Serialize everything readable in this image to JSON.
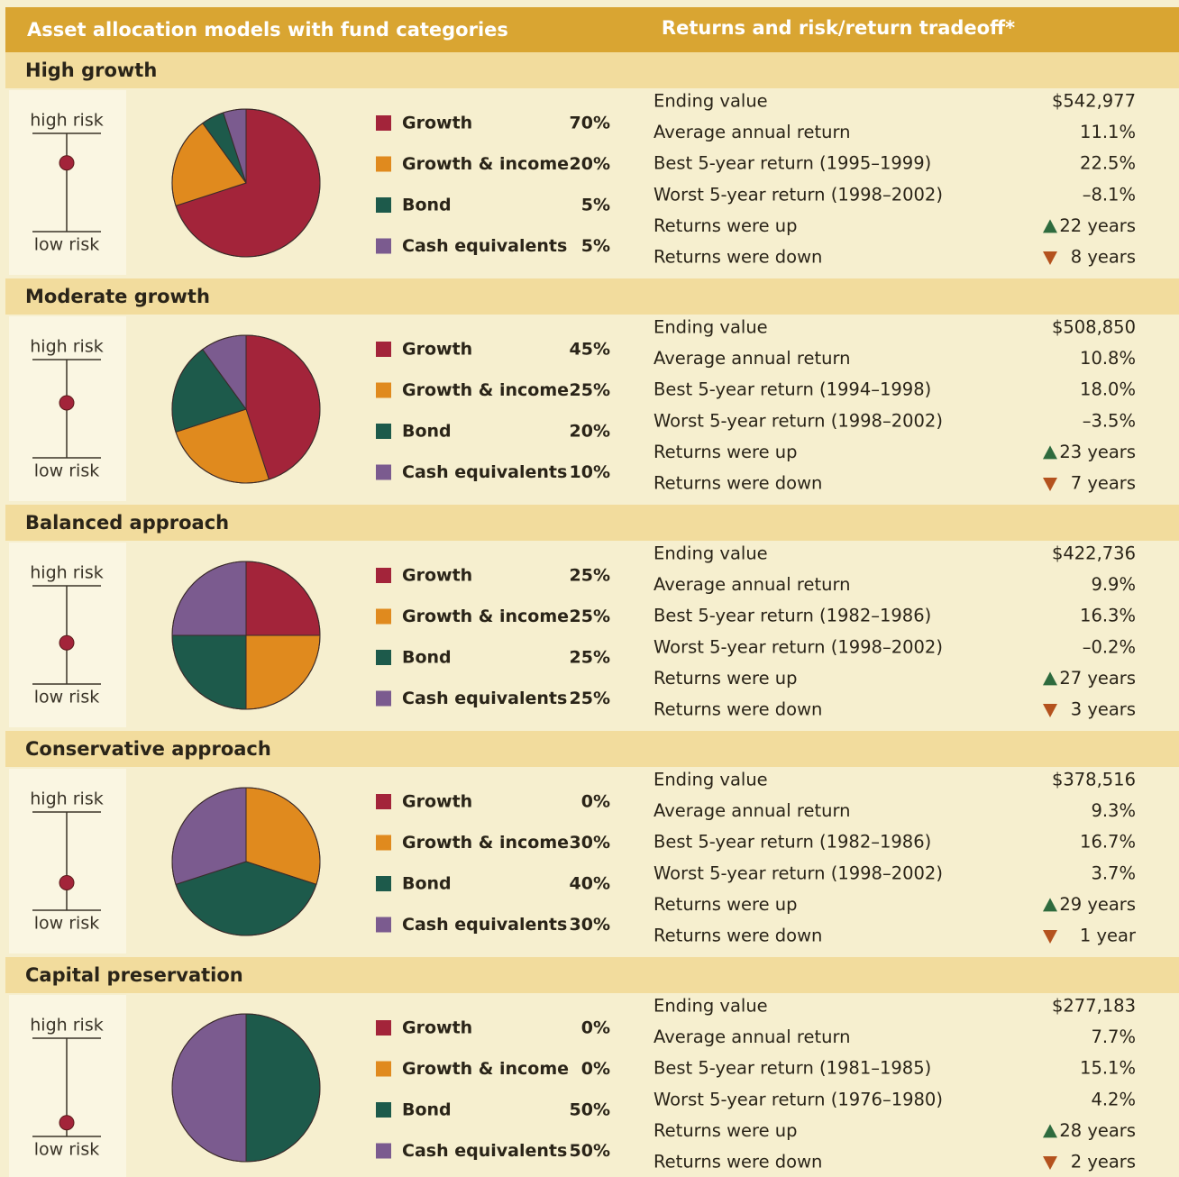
{
  "header": {
    "left": "Asset allocation models with fund categories",
    "right": "Returns and risk/return tradeoff*"
  },
  "models": [
    {
      "title": "High growth",
      "risk_high": "high risk",
      "risk_low": "low risk",
      "chart_data": {
        "type": "pie",
        "categories": [
          "Growth",
          "Growth & income",
          "Bond",
          "Cash equivalents"
        ],
        "values": [
          70,
          20,
          5,
          5
        ],
        "value_labels": [
          "70%",
          "20%",
          "5%",
          "5%"
        ],
        "colors": [
          "#a3243a",
          "#e08a1e",
          "#1d5a4b",
          "#7b5b8f"
        ]
      },
      "returns": [
        {
          "label": "Ending value",
          "value": "$542,977"
        },
        {
          "label": "Average annual return",
          "value": "11.1%"
        },
        {
          "label": "Best 5-year return (1995–1999)",
          "value": "22.5%"
        },
        {
          "label": "Worst 5-year return (1998–2002)",
          "value": "–8.1%"
        },
        {
          "label": "Returns were up",
          "value": "22 years"
        },
        {
          "label": "Returns were down",
          "value": "8 years"
        }
      ]
    },
    {
      "title": "Moderate growth",
      "risk_high": "high risk",
      "risk_low": "low risk",
      "chart_data": {
        "type": "pie",
        "categories": [
          "Growth",
          "Growth & income",
          "Bond",
          "Cash equivalents"
        ],
        "values": [
          45,
          25,
          20,
          10
        ],
        "value_labels": [
          "45%",
          "25%",
          "20%",
          "10%"
        ],
        "colors": [
          "#a3243a",
          "#e08a1e",
          "#1d5a4b",
          "#7b5b8f"
        ]
      },
      "returns": [
        {
          "label": "Ending value",
          "value": "$508,850"
        },
        {
          "label": "Average annual return",
          "value": "10.8%"
        },
        {
          "label": "Best 5-year return (1994–1998)",
          "value": "18.0%"
        },
        {
          "label": "Worst 5-year return (1998–2002)",
          "value": "–3.5%"
        },
        {
          "label": "Returns were up",
          "value": "23 years"
        },
        {
          "label": "Returns were down",
          "value": "7 years"
        }
      ]
    },
    {
      "title": "Balanced approach",
      "risk_high": "high risk",
      "risk_low": "low risk",
      "chart_data": {
        "type": "pie",
        "categories": [
          "Growth",
          "Growth & income",
          "Bond",
          "Cash equivalents"
        ],
        "values": [
          25,
          25,
          25,
          25
        ],
        "value_labels": [
          "25%",
          "25%",
          "25%",
          "25%"
        ],
        "colors": [
          "#a3243a",
          "#e08a1e",
          "#1d5a4b",
          "#7b5b8f"
        ]
      },
      "returns": [
        {
          "label": "Ending value",
          "value": "$422,736"
        },
        {
          "label": "Average annual return",
          "value": "9.9%"
        },
        {
          "label": "Best 5-year return (1982–1986)",
          "value": "16.3%"
        },
        {
          "label": "Worst 5-year return (1998–2002)",
          "value": "–0.2%"
        },
        {
          "label": "Returns were up",
          "value": "27 years"
        },
        {
          "label": "Returns were down",
          "value": "3 years"
        }
      ]
    },
    {
      "title": "Conservative approach",
      "risk_high": "high risk",
      "risk_low": "low risk",
      "chart_data": {
        "type": "pie",
        "categories": [
          "Growth",
          "Growth & income",
          "Bond",
          "Cash equivalents"
        ],
        "values": [
          0,
          30,
          40,
          30
        ],
        "value_labels": [
          "0%",
          "30%",
          "40%",
          "30%"
        ],
        "colors": [
          "#a3243a",
          "#e08a1e",
          "#1d5a4b",
          "#7b5b8f"
        ]
      },
      "returns": [
        {
          "label": "Ending value",
          "value": "$378,516"
        },
        {
          "label": "Average annual return",
          "value": "9.3%"
        },
        {
          "label": "Best 5-year return (1982–1986)",
          "value": "16.7%"
        },
        {
          "label": "Worst 5-year return (1998–2002)",
          "value": "3.7%"
        },
        {
          "label": "Returns were up",
          "value": "29 years"
        },
        {
          "label": "Returns were down",
          "value": "1 year"
        }
      ]
    },
    {
      "title": "Capital preservation",
      "risk_high": "high risk",
      "risk_low": "low risk",
      "chart_data": {
        "type": "pie",
        "categories": [
          "Growth",
          "Growth & income",
          "Bond",
          "Cash equivalents"
        ],
        "values": [
          0,
          0,
          50,
          50
        ],
        "value_labels": [
          "0%",
          "0%",
          "50%",
          "50%"
        ],
        "colors": [
          "#a3243a",
          "#e08a1e",
          "#1d5a4b",
          "#7b5b8f"
        ]
      },
      "returns": [
        {
          "label": "Ending value",
          "value": "$277,183"
        },
        {
          "label": "Average annual return",
          "value": "7.7%"
        },
        {
          "label": "Best 5-year return (1981–1985)",
          "value": "15.1%"
        },
        {
          "label": "Worst 5-year return (1976–1980)",
          "value": "4.2%"
        },
        {
          "label": "Returns were up",
          "value": "28 years"
        },
        {
          "label": "Returns were down",
          "value": "2 years"
        }
      ]
    }
  ]
}
